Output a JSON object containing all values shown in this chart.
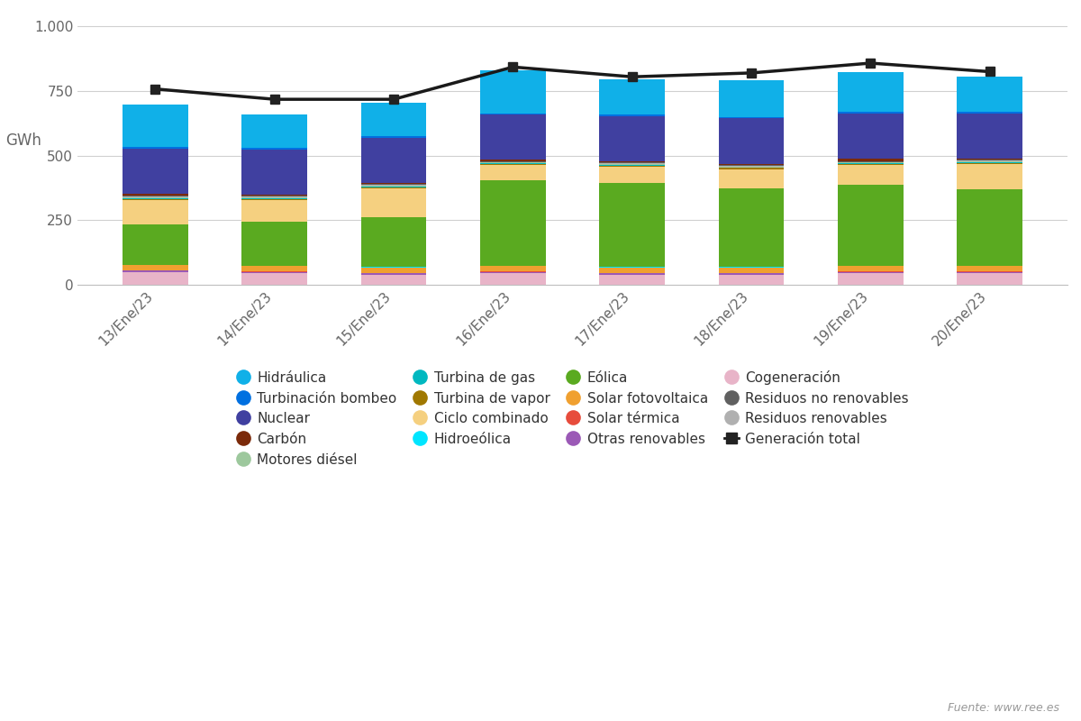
{
  "dates": [
    "13/Ene/23",
    "14/Ene/23",
    "15/Ene/23",
    "16/Ene/23",
    "17/Ene/23",
    "18/Ene/23",
    "19/Ene/23",
    "20/Ene/23"
  ],
  "total_line": [
    758,
    718,
    718,
    843,
    805,
    820,
    858,
    825
  ],
  "segments": {
    "Cogeneración": [
      50,
      45,
      40,
      45,
      40,
      40,
      45,
      45
    ],
    "Otras renovables": [
      5,
      5,
      5,
      5,
      5,
      5,
      5,
      5
    ],
    "Solar térmica": [
      2,
      2,
      2,
      2,
      2,
      2,
      2,
      2
    ],
    "Solar fotovoltaica": [
      20,
      20,
      20,
      20,
      20,
      20,
      20,
      20
    ],
    "Hidroeólica": [
      1,
      1,
      1,
      1,
      1,
      1,
      1,
      1
    ],
    "Eólica": [
      155,
      170,
      195,
      330,
      325,
      305,
      315,
      295
    ],
    "Ciclo combinado": [
      95,
      85,
      110,
      60,
      65,
      75,
      75,
      100
    ],
    "Turbina de vapor": [
      4,
      4,
      4,
      4,
      4,
      4,
      4,
      4
    ],
    "Turbina de gas": [
      3,
      3,
      3,
      3,
      3,
      3,
      3,
      3
    ],
    "Motores diésel": [
      3,
      3,
      3,
      3,
      3,
      3,
      3,
      3
    ],
    "Residuos renovables": [
      3,
      3,
      3,
      3,
      3,
      3,
      3,
      3
    ],
    "Residuos no renovables": [
      3,
      3,
      3,
      3,
      3,
      3,
      3,
      3
    ],
    "Carbón": [
      8,
      5,
      5,
      5,
      5,
      5,
      10,
      5
    ],
    "Nuclear": [
      175,
      175,
      175,
      175,
      175,
      175,
      175,
      175
    ],
    "Turbinación bombeo": [
      5,
      5,
      5,
      5,
      5,
      5,
      5,
      5
    ],
    "Hidráulica": [
      167,
      130,
      130,
      165,
      135,
      142,
      155,
      137
    ]
  },
  "colors": {
    "Cogeneración": "#e8b4c8",
    "Otras renovables": "#9b59b6",
    "Solar térmica": "#e74c3c",
    "Solar fotovoltaica": "#f0a030",
    "Hidroeólica": "#00e5ff",
    "Eólica": "#5aaa20",
    "Ciclo combinado": "#f5d080",
    "Turbina de vapor": "#a07800",
    "Turbina de gas": "#00b8c0",
    "Motores diésel": "#9dc89d",
    "Residuos renovables": "#b0b0b0",
    "Residuos no renovables": "#606060",
    "Carbón": "#7b2a0a",
    "Nuclear": "#4040a0",
    "Turbinación bombeo": "#0070e0",
    "Hidráulica": "#10b0e8"
  },
  "legend_order": [
    "Hidráulica",
    "Turbinación bombeo",
    "Nuclear",
    "Carbón",
    "Motores diésel",
    "Turbina de gas",
    "Turbina de vapor",
    "Ciclo combinado",
    "Hidroeólica",
    "Eólica",
    "Solar fotovoltaica",
    "Solar térmica",
    "Otras renovables",
    "Cogeneración",
    "Residuos no renovables",
    "Residuos renovables",
    "Generación total"
  ],
  "ylabel": "GWh",
  "ylim": [
    0,
    1050
  ],
  "yticks": [
    0,
    250,
    500,
    750,
    1000
  ],
  "ytick_labels": [
    "0",
    "250",
    "500",
    "750",
    "1.000"
  ],
  "source": "Fuente: www.ree.es",
  "background_color": "#ffffff",
  "bar_width": 0.55
}
